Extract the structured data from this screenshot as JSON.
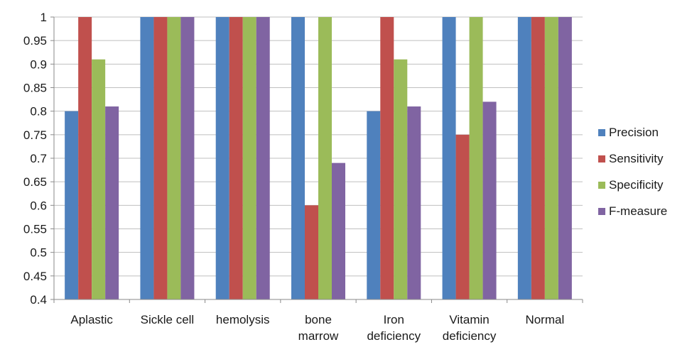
{
  "chart_data": {
    "type": "bar",
    "categories": [
      [
        "Aplastic"
      ],
      [
        "Sickle cell"
      ],
      [
        "hemolysis"
      ],
      [
        "bone",
        "marrow"
      ],
      [
        "Iron",
        "deficiency"
      ],
      [
        "Vitamin",
        "deficiency"
      ],
      [
        "Normal"
      ]
    ],
    "series": [
      {
        "name": "Precision",
        "color": "#4F81BD",
        "values": [
          0.8,
          1.0,
          1.0,
          1.0,
          0.8,
          1.0,
          1.0
        ]
      },
      {
        "name": "Sensitivity",
        "color": "#C0504D",
        "values": [
          1.0,
          1.0,
          1.0,
          0.6,
          1.0,
          0.75,
          1.0
        ]
      },
      {
        "name": "Specificity",
        "color": "#9BBB59",
        "values": [
          0.91,
          1.0,
          1.0,
          1.0,
          0.91,
          1.0,
          1.0
        ]
      },
      {
        "name": "F-measure",
        "color": "#8064A2",
        "values": [
          0.81,
          1.0,
          1.0,
          0.69,
          0.81,
          0.82,
          1.0
        ]
      }
    ],
    "y_ticks": [
      "0.4",
      "0.45",
      "0.5",
      "0.55",
      "0.6",
      "0.65",
      "0.7",
      "0.75",
      "0.8",
      "0.85",
      "0.9",
      "0.95",
      "1"
    ],
    "ylim": [
      0.4,
      1.0
    ],
    "grid": true,
    "legend_position": "right"
  }
}
